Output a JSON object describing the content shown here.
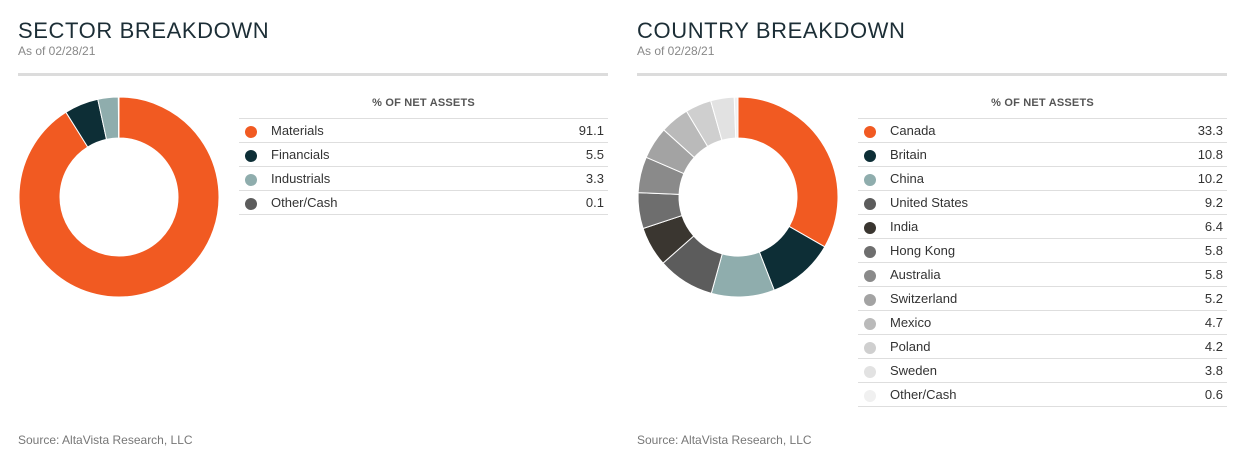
{
  "chart_data": [
    {
      "type": "pie",
      "title": "SECTOR BREAKDOWN",
      "subtitle": "As of 02/28/21",
      "legend_header": "% OF NET ASSETS",
      "source": "Source: AltaVista Research, LLC",
      "categories": [
        "Materials",
        "Financials",
        "Industrials",
        "Other/Cash"
      ],
      "values": [
        "91.1",
        "5.5",
        "3.3",
        "0.1"
      ],
      "colors": [
        "#f15a22",
        "#0d2e36",
        "#8fadad",
        "#5c5c5c"
      ]
    },
    {
      "type": "pie",
      "title": "COUNTRY BREAKDOWN",
      "subtitle": "As of 02/28/21",
      "legend_header": "% OF NET ASSETS",
      "source": "Source: AltaVista Research, LLC",
      "categories": [
        "Canada",
        "Britain",
        "China",
        "United States",
        "India",
        "Hong Kong",
        "Australia",
        "Switzerland",
        "Mexico",
        "Poland",
        "Sweden",
        "Other/Cash"
      ],
      "values": [
        "33.3",
        "10.8",
        "10.2",
        "9.2",
        "6.4",
        "5.8",
        "5.8",
        "5.2",
        "4.7",
        "4.2",
        "3.8",
        "0.6"
      ],
      "colors": [
        "#f15a22",
        "#0d2e36",
        "#8fadad",
        "#5c5c5c",
        "#3a3630",
        "#6e6e6e",
        "#8a8a8a",
        "#a3a3a3",
        "#bababa",
        "#cfcfcf",
        "#e2e2e2",
        "#f0f0f0"
      ]
    }
  ]
}
